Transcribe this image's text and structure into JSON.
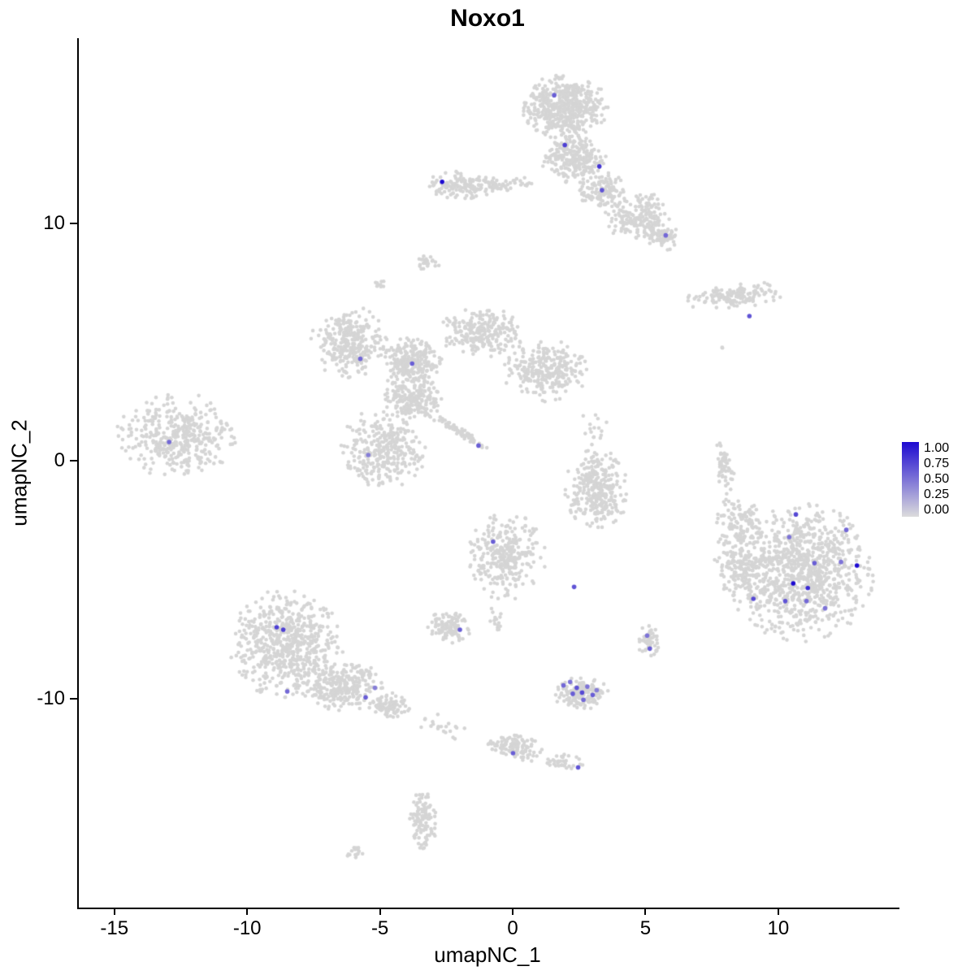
{
  "figure": {
    "title": "Noxo1",
    "x_label": "umapNC_1",
    "y_label": "umapNC_2"
  },
  "axes": {
    "x_ticks": [
      -15,
      -10,
      -5,
      0,
      5,
      10
    ],
    "x_tick_labels": [
      "-15",
      "-10",
      "-5",
      "0",
      "5",
      "10"
    ],
    "y_ticks": [
      -10,
      0,
      10
    ],
    "y_tick_labels": [
      "-10",
      "0",
      "10"
    ]
  },
  "legend": {
    "labels": [
      "1.00",
      "0.75",
      "0.50",
      "0.25",
      "0.00"
    ],
    "color_high": "#1D0AD1",
    "color_low": "#DCDCDC"
  },
  "style": {
    "point_color": "#D5D5D5",
    "point_radius": 2.3,
    "expressed_radius": 2.8,
    "axis_color": "#000000"
  },
  "chart_data": {
    "type": "scatter",
    "title": "Noxo1",
    "xlabel": "umapNC_1",
    "ylabel": "umapNC_2",
    "xlim": [
      -16.4,
      14.5
    ],
    "ylim": [
      -18.8,
      17.8
    ],
    "legend_limits": [
      0,
      1
    ],
    "color_scale": {
      "low": "#DCDCDC",
      "high": "#1D0AD1",
      "ticks": [
        "1.00",
        "0.75",
        "0.50",
        "0.25",
        "0.00"
      ]
    },
    "background_clusters": [
      {
        "cx": 1.9,
        "cy": 14.9,
        "rx": 1.5,
        "ry": 1.25,
        "n": 520
      },
      {
        "cx": 2.2,
        "cy": 12.7,
        "rx": 1.15,
        "ry": 0.95,
        "n": 260
      },
      {
        "cx": 3.3,
        "cy": 11.4,
        "rx": 0.85,
        "ry": 0.7,
        "n": 130
      },
      {
        "cx": 4.7,
        "cy": 10.3,
        "rx": 1.25,
        "ry": 0.95,
        "n": 190
      },
      {
        "cx": 5.6,
        "cy": 9.4,
        "rx": 0.6,
        "ry": 0.5,
        "n": 60
      },
      {
        "cx": -0.4,
        "cy": 11.7,
        "rx": 1.1,
        "ry": 0.3,
        "n": 45
      },
      {
        "cx": -2.0,
        "cy": 11.6,
        "rx": 1.2,
        "ry": 0.55,
        "n": 140
      },
      {
        "cx": 8.3,
        "cy": 6.95,
        "rx": 1.75,
        "ry": 0.5,
        "n": 140,
        "rot": 6
      },
      {
        "cx": 7.8,
        "cy": 4.75,
        "rx": 0.12,
        "ry": 0.12,
        "n": 2
      },
      {
        "cx": -6.2,
        "cy": 5.0,
        "rx": 1.35,
        "ry": 1.4,
        "n": 300
      },
      {
        "cx": -3.9,
        "cy": 4.1,
        "rx": 1.1,
        "ry": 1.0,
        "n": 240
      },
      {
        "cx": -1.2,
        "cy": 5.4,
        "rx": 1.5,
        "ry": 1.0,
        "n": 240
      },
      {
        "cx": 1.2,
        "cy": 3.8,
        "rx": 1.5,
        "ry": 1.2,
        "n": 290
      },
      {
        "cx": -3.8,
        "cy": 2.6,
        "rx": 1.0,
        "ry": 0.9,
        "n": 190
      },
      {
        "cx": -4.9,
        "cy": 0.55,
        "rx": 1.5,
        "ry": 1.55,
        "n": 320
      },
      {
        "cx": -2.1,
        "cy": 1.25,
        "rx": 1.25,
        "ry": 0.16,
        "n": 70,
        "rot": -33
      },
      {
        "cx": -12.7,
        "cy": 1.1,
        "rx": 2.1,
        "ry": 1.65,
        "n": 400
      },
      {
        "cx": -3.3,
        "cy": 8.35,
        "rx": 0.45,
        "ry": 0.3,
        "n": 22
      },
      {
        "cx": -5.1,
        "cy": 7.4,
        "rx": 0.3,
        "ry": 0.2,
        "n": 10
      },
      {
        "cx": 3.0,
        "cy": 1.5,
        "rx": 0.5,
        "ry": 1.0,
        "n": 16
      },
      {
        "cx": 3.1,
        "cy": -1.2,
        "rx": 1.1,
        "ry": 1.6,
        "n": 300
      },
      {
        "cx": 7.9,
        "cy": -0.3,
        "rx": 0.33,
        "ry": 1.25,
        "n": 55,
        "rot": 8
      },
      {
        "cx": 10.8,
        "cy": -4.7,
        "rx": 2.6,
        "ry": 2.7,
        "n": 950
      },
      {
        "cx": 8.6,
        "cy": -4.3,
        "rx": 1.0,
        "ry": 1.6,
        "n": 170
      },
      {
        "cx": 8.4,
        "cy": -2.4,
        "rx": 0.8,
        "ry": 0.85,
        "n": 80
      },
      {
        "cx": -0.3,
        "cy": -4.0,
        "rx": 1.4,
        "ry": 1.7,
        "n": 300
      },
      {
        "cx": -0.7,
        "cy": -6.7,
        "rx": 0.28,
        "ry": 0.6,
        "n": 16
      },
      {
        "cx": -2.45,
        "cy": -7.0,
        "rx": 0.75,
        "ry": 0.65,
        "n": 110
      },
      {
        "cx": -8.6,
        "cy": -7.7,
        "rx": 2.0,
        "ry": 2.1,
        "n": 620
      },
      {
        "cx": -6.4,
        "cy": -9.5,
        "rx": 1.5,
        "ry": 0.95,
        "n": 280
      },
      {
        "cx": -4.7,
        "cy": -10.3,
        "rx": 0.75,
        "ry": 0.5,
        "n": 90
      },
      {
        "cx": 2.5,
        "cy": -9.8,
        "rx": 1.0,
        "ry": 0.62,
        "n": 150
      },
      {
        "cx": 5.05,
        "cy": -7.6,
        "rx": 0.42,
        "ry": 0.6,
        "n": 50
      },
      {
        "cx": 0.0,
        "cy": -12.05,
        "rx": 1.05,
        "ry": 0.55,
        "n": 110,
        "rot": -12
      },
      {
        "cx": 1.9,
        "cy": -12.65,
        "rx": 0.7,
        "ry": 0.3,
        "n": 35
      },
      {
        "cx": -2.6,
        "cy": -11.2,
        "rx": 1.1,
        "ry": 0.45,
        "n": 20,
        "rot": -15
      },
      {
        "cx": -3.45,
        "cy": -15.15,
        "rx": 0.55,
        "ry": 1.15,
        "n": 110
      },
      {
        "cx": -5.95,
        "cy": -16.5,
        "rx": 0.38,
        "ry": 0.24,
        "n": 16
      }
    ],
    "expressed_points": [
      {
        "x": -2.72,
        "y": 11.75,
        "v": 1.0
      },
      {
        "x": 1.5,
        "y": 15.4,
        "v": 0.6
      },
      {
        "x": 1.9,
        "y": 13.3,
        "v": 0.75
      },
      {
        "x": 3.2,
        "y": 12.4,
        "v": 0.8
      },
      {
        "x": 3.3,
        "y": 11.4,
        "v": 0.65
      },
      {
        "x": 5.7,
        "y": 9.5,
        "v": 0.55
      },
      {
        "x": 8.85,
        "y": 6.1,
        "v": 0.65
      },
      {
        "x": -5.8,
        "y": 4.3,
        "v": 0.55
      },
      {
        "x": -3.85,
        "y": 4.1,
        "v": 0.6
      },
      {
        "x": -13.0,
        "y": 0.8,
        "v": 0.55
      },
      {
        "x": -5.5,
        "y": 0.25,
        "v": 0.45
      },
      {
        "x": -1.35,
        "y": 0.65,
        "v": 0.6
      },
      {
        "x": -0.8,
        "y": -3.4,
        "v": 0.6
      },
      {
        "x": 2.25,
        "y": -5.3,
        "v": 0.65
      },
      {
        "x": -2.05,
        "y": -7.1,
        "v": 0.6
      },
      {
        "x": -8.95,
        "y": -7.0,
        "v": 0.75
      },
      {
        "x": -8.7,
        "y": -7.1,
        "v": 0.75
      },
      {
        "x": -8.55,
        "y": -9.7,
        "v": 0.55
      },
      {
        "x": -5.6,
        "y": -9.95,
        "v": 0.6
      },
      {
        "x": -5.25,
        "y": -9.55,
        "v": 0.45
      },
      {
        "x": 5.0,
        "y": -7.35,
        "v": 0.5
      },
      {
        "x": 5.1,
        "y": -7.9,
        "v": 0.6
      },
      {
        "x": 1.85,
        "y": -9.45,
        "v": 0.55
      },
      {
        "x": 2.1,
        "y": -9.3,
        "v": 0.5
      },
      {
        "x": 2.35,
        "y": -9.55,
        "v": 0.65
      },
      {
        "x": 2.2,
        "y": -9.8,
        "v": 0.6
      },
      {
        "x": 2.55,
        "y": -9.75,
        "v": 0.7
      },
      {
        "x": 2.75,
        "y": -9.5,
        "v": 0.5
      },
      {
        "x": 2.95,
        "y": -9.85,
        "v": 0.6
      },
      {
        "x": 2.6,
        "y": -10.05,
        "v": 0.55
      },
      {
        "x": 3.1,
        "y": -9.65,
        "v": 0.45
      },
      {
        "x": -0.05,
        "y": -12.3,
        "v": 0.6
      },
      {
        "x": 2.4,
        "y": -12.9,
        "v": 0.65
      },
      {
        "x": 10.6,
        "y": -2.25,
        "v": 0.7
      },
      {
        "x": 12.5,
        "y": -2.9,
        "v": 0.55
      },
      {
        "x": 10.35,
        "y": -3.2,
        "v": 0.5
      },
      {
        "x": 11.3,
        "y": -4.3,
        "v": 0.6
      },
      {
        "x": 12.3,
        "y": -4.25,
        "v": 0.5
      },
      {
        "x": 12.9,
        "y": -4.4,
        "v": 1.0
      },
      {
        "x": 9.0,
        "y": -5.8,
        "v": 0.7
      },
      {
        "x": 10.5,
        "y": -5.15,
        "v": 1.0
      },
      {
        "x": 11.05,
        "y": -5.35,
        "v": 0.85
      },
      {
        "x": 10.2,
        "y": -5.9,
        "v": 0.65
      },
      {
        "x": 11.0,
        "y": -5.9,
        "v": 0.55
      },
      {
        "x": 11.7,
        "y": -6.2,
        "v": 0.5
      }
    ]
  }
}
